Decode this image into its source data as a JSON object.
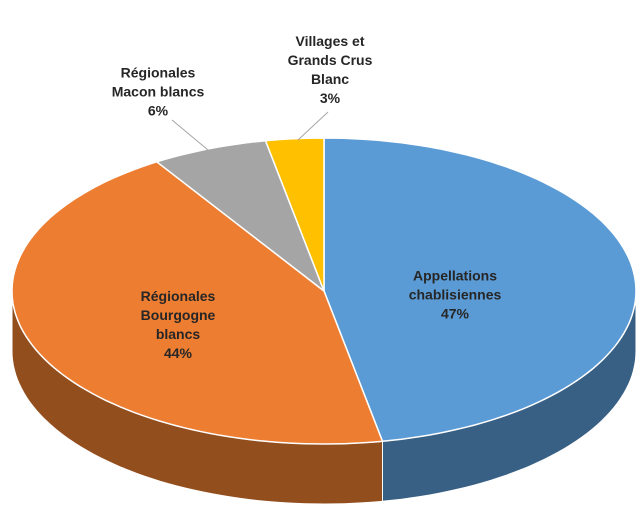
{
  "chart_data": {
    "type": "pie",
    "categories": [
      "Appellations chablisiennes",
      "Régionales Bourgogne blancs",
      "Régionales Macon blancs",
      "Villages et Grands Crus Blanc"
    ],
    "values": [
      47,
      44,
      6,
      3
    ],
    "value_labels": [
      "47%",
      "44%",
      "6%",
      "3%"
    ],
    "colors": [
      "#5b9bd5",
      "#ed7d31",
      "#a5a5a5",
      "#ffc000"
    ]
  }
}
